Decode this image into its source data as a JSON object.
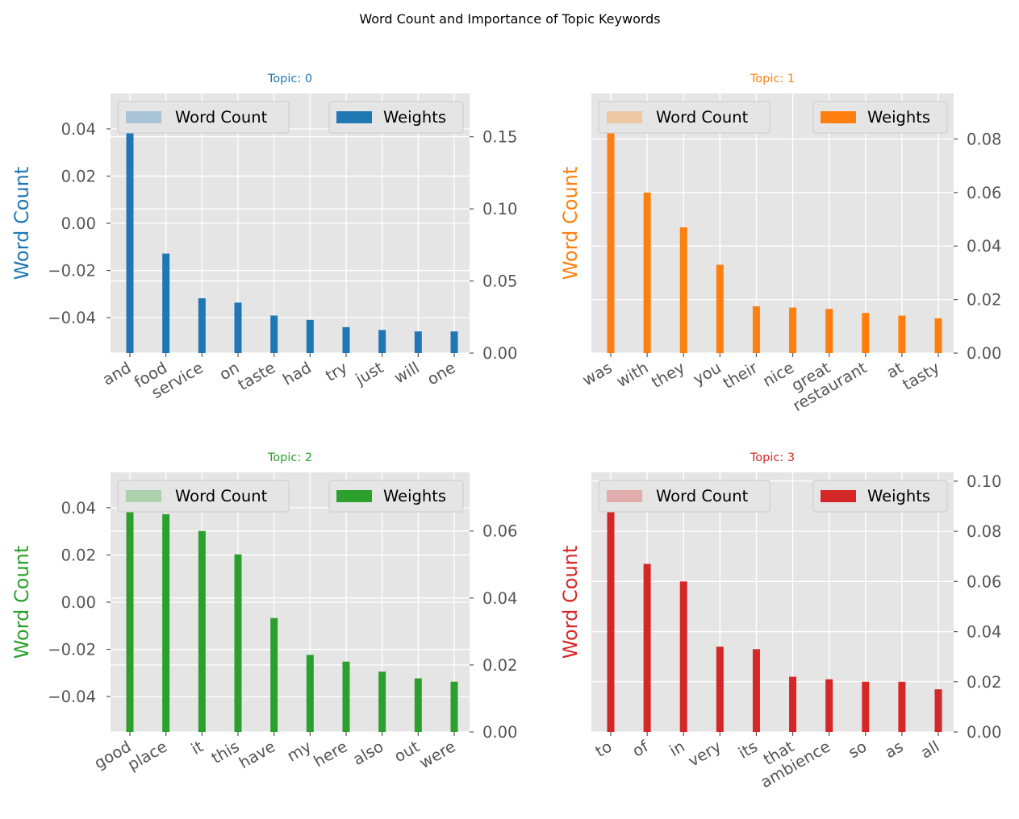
{
  "figure": {
    "title": "Word Count and Importance of Topic Keywords",
    "background": "#ffffff",
    "axes_background": "#e5e5e5",
    "grid_color": "#ffffff"
  },
  "chart_data": [
    {
      "type": "bar",
      "title": "Topic: 0",
      "color": "#1f77b4",
      "ylabel": "Word Count",
      "legend": {
        "word_count": "Word Count",
        "weights": "Weights"
      },
      "categories": [
        "and",
        "food",
        "service",
        "on",
        "taste",
        "had",
        "try",
        "just",
        "will",
        "one"
      ],
      "word_count_values": [],
      "weights": [
        0.172,
        0.069,
        0.038,
        0.035,
        0.026,
        0.023,
        0.018,
        0.016,
        0.015,
        0.015
      ],
      "left_axis": {
        "ylim": [
          -0.055,
          0.055
        ],
        "ticks": [
          -0.04,
          -0.02,
          0.0,
          0.02,
          0.04
        ],
        "tick_labels": [
          "−0.04",
          "−0.02",
          "0.00",
          "0.02",
          "0.04"
        ]
      },
      "right_axis": {
        "ylim": [
          0,
          0.18
        ],
        "ticks": [
          0.0,
          0.05,
          0.1,
          0.15
        ],
        "tick_labels": [
          "0.00",
          "0.05",
          "0.10",
          "0.15"
        ]
      }
    },
    {
      "type": "bar",
      "title": "Topic: 1",
      "color": "#ff7f0e",
      "ylabel": "Word Count",
      "legend": {
        "word_count": "Word Count",
        "weights": "Weights"
      },
      "categories": [
        "was",
        "with",
        "they",
        "you",
        "their",
        "nice",
        "great",
        "restaurant",
        "at",
        "tasty"
      ],
      "word_count_values": [],
      "weights": [
        0.093,
        0.06,
        0.047,
        0.033,
        0.0175,
        0.017,
        0.0165,
        0.015,
        0.014,
        0.013
      ],
      "left_axis": {
        "ylim": [
          -0.055,
          0.055
        ],
        "ticks": [],
        "tick_labels": []
      },
      "right_axis": {
        "ylim": [
          0,
          0.097
        ],
        "ticks": [
          0.0,
          0.02,
          0.04,
          0.06,
          0.08
        ],
        "tick_labels": [
          "0.00",
          "0.02",
          "0.04",
          "0.06",
          "0.08"
        ]
      }
    },
    {
      "type": "bar",
      "title": "Topic: 2",
      "color": "#2ca02c",
      "ylabel": "Word Count",
      "legend": {
        "word_count": "Word Count",
        "weights": "Weights"
      },
      "categories": [
        "good",
        "place",
        "it",
        "this",
        "have",
        "my",
        "here",
        "also",
        "out",
        "were"
      ],
      "word_count_values": [],
      "weights": [
        0.074,
        0.065,
        0.06,
        0.053,
        0.034,
        0.023,
        0.021,
        0.018,
        0.016,
        0.015
      ],
      "left_axis": {
        "ylim": [
          -0.055,
          0.055
        ],
        "ticks": [
          -0.04,
          -0.02,
          0.0,
          0.02,
          0.04
        ],
        "tick_labels": [
          "−0.04",
          "−0.02",
          "0.00",
          "0.02",
          "0.04"
        ]
      },
      "right_axis": {
        "ylim": [
          0,
          0.0775
        ],
        "ticks": [
          0.0,
          0.02,
          0.04,
          0.06
        ],
        "tick_labels": [
          "0.00",
          "0.02",
          "0.04",
          "0.06"
        ]
      }
    },
    {
      "type": "bar",
      "title": "Topic: 3",
      "color": "#d62728",
      "ylabel": "Word Count",
      "legend": {
        "word_count": "Word Count",
        "weights": "Weights"
      },
      "categories": [
        "to",
        "of",
        "in",
        "very",
        "its",
        "that",
        "ambience",
        "so",
        "as",
        "all"
      ],
      "word_count_values": [],
      "weights": [
        0.099,
        0.067,
        0.06,
        0.034,
        0.033,
        0.022,
        0.021,
        0.02,
        0.02,
        0.017
      ],
      "left_axis": {
        "ylim": [
          -0.055,
          0.055
        ],
        "ticks": [],
        "tick_labels": []
      },
      "right_axis": {
        "ylim": [
          0,
          0.1035
        ],
        "ticks": [
          0.0,
          0.02,
          0.04,
          0.06,
          0.08,
          0.1
        ],
        "tick_labels": [
          "0.00",
          "0.02",
          "0.04",
          "0.06",
          "0.08",
          "0.10"
        ]
      }
    }
  ]
}
